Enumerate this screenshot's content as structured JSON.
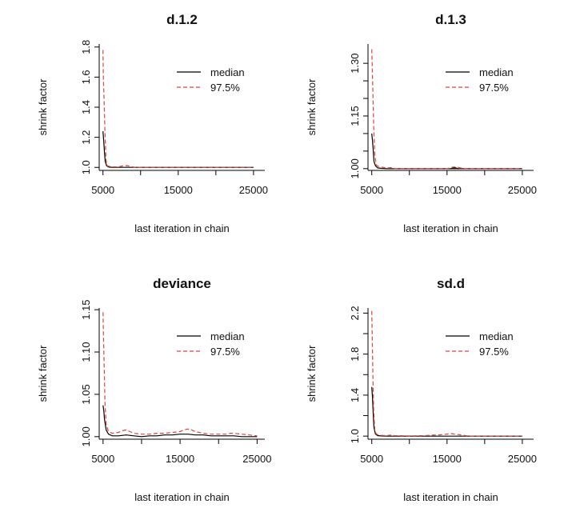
{
  "chart_data": [
    {
      "type": "line",
      "title": "d.1.2",
      "xlabel": "last iteration in chain",
      "ylabel": "shrink factor",
      "xlim": [
        4500,
        26500
      ],
      "ylim": [
        0.98,
        1.82
      ],
      "xticks": [
        5000,
        15000,
        25000
      ],
      "xtick_labels": [
        "5000",
        "15000",
        "25000"
      ],
      "extra_xticks": [
        10000,
        20000
      ],
      "yticks": [
        1.0,
        1.2,
        1.4,
        1.6,
        1.8
      ],
      "ytick_labels": [
        "1.0",
        "1.2",
        "1.4",
        "1.6",
        "1.8"
      ],
      "legend": {
        "position": "top-right",
        "entries": [
          "median",
          "97.5%"
        ]
      },
      "series": [
        {
          "name": "median",
          "color": "#000000",
          "dash": "solid",
          "x": [
            5000,
            5100,
            5200,
            5300,
            5500,
            5800,
            6200,
            7000,
            8000,
            9000,
            10000,
            15000,
            20000,
            25000
          ],
          "y": [
            1.24,
            1.18,
            1.1,
            1.04,
            1.01,
            1.002,
            1.001,
            1.0,
            1.0,
            1.0,
            1.0,
            1.0,
            1.0,
            1.0
          ]
        },
        {
          "name": "97.5%",
          "color": "#e0443a",
          "dash": "dashed",
          "x": [
            5000,
            5050,
            5150,
            5250,
            5400,
            5600,
            6000,
            7000,
            7600,
            8200,
            8800,
            9200,
            10000,
            15000,
            20000,
            25000
          ],
          "y": [
            1.78,
            1.6,
            1.45,
            1.25,
            1.05,
            1.01,
            1.005,
            1.003,
            1.01,
            1.012,
            1.005,
            1.001,
            1.0,
            1.0,
            1.0,
            1.0
          ]
        }
      ]
    },
    {
      "type": "line",
      "title": "d.1.3",
      "xlabel": "last iteration in chain",
      "ylabel": "shrink factor",
      "xlim": [
        4500,
        26500
      ],
      "ylim": [
        0.995,
        1.355
      ],
      "xticks": [
        5000,
        15000,
        25000
      ],
      "xtick_labels": [
        "5000",
        "15000",
        "25000"
      ],
      "extra_xticks": [
        10000,
        20000
      ],
      "yticks": [
        1.0,
        1.15,
        1.3
      ],
      "ytick_labels": [
        "1.00",
        "1.15",
        "1.30"
      ],
      "extra_yticks": [
        1.05,
        1.1,
        1.2,
        1.25
      ],
      "legend": {
        "position": "top-right",
        "entries": [
          "median",
          "97.5%"
        ]
      },
      "series": [
        {
          "name": "median",
          "color": "#000000",
          "dash": "solid",
          "x": [
            5000,
            5100,
            5200,
            5300,
            5500,
            5800,
            6200,
            7000,
            8000,
            10000,
            15000,
            20000,
            25000
          ],
          "y": [
            1.1,
            1.08,
            1.05,
            1.02,
            1.008,
            1.002,
            1.001,
            1.0,
            1.0,
            1.0,
            1.0,
            1.0,
            1.0
          ],
          "bumps": [
            {
              "x": [
                15500,
                16000,
                16500
              ],
              "y": [
                1.0,
                1.003,
                1.0
              ]
            }
          ]
        },
        {
          "name": "97.5%",
          "color": "#e0443a",
          "dash": "dashed",
          "x": [
            5000,
            5050,
            5150,
            5250,
            5400,
            5600,
            6000,
            7000,
            7600,
            8000,
            10000,
            15000,
            15700,
            16200,
            16800,
            17500,
            20000,
            25000
          ],
          "y": [
            1.34,
            1.3,
            1.22,
            1.12,
            1.04,
            1.01,
            1.005,
            1.002,
            1.003,
            1.0,
            1.0,
            1.0,
            1.004,
            1.005,
            1.002,
            1.0,
            1.0,
            1.0
          ]
        }
      ]
    },
    {
      "type": "line",
      "title": "deviance",
      "xlabel": "last iteration in chain",
      "ylabel": "shrink factor",
      "xlim": [
        4500,
        26000
      ],
      "ylim": [
        0.997,
        1.152
      ],
      "xticks": [
        5000,
        15000,
        25000
      ],
      "xtick_labels": [
        "5000",
        "15000",
        "25000"
      ],
      "extra_xticks": [
        10000,
        20000
      ],
      "yticks": [
        1.0,
        1.05,
        1.1,
        1.15
      ],
      "ytick_labels": [
        "1.00",
        "1.05",
        "1.10",
        "1.15"
      ],
      "legend": {
        "position": "top-right",
        "entries": [
          "median",
          "97.5%"
        ]
      },
      "series": [
        {
          "name": "median",
          "color": "#000000",
          "dash": "solid",
          "x": [
            5000,
            5100,
            5200,
            5400,
            5700,
            6200,
            7000,
            8000,
            9000,
            10000,
            11000,
            12000,
            13000,
            14000,
            15000,
            16000,
            17000,
            18000,
            19000,
            20000,
            21000,
            22000,
            23000,
            24000,
            25000
          ],
          "y": [
            1.037,
            1.03,
            1.02,
            1.008,
            1.003,
            1.001,
            1.001,
            1.002,
            1.001,
            1.0,
            1.001,
            1.001,
            1.002,
            1.002,
            1.003,
            1.003,
            1.002,
            1.002,
            1.001,
            1.001,
            1.001,
            1.001,
            1.0,
            1.0,
            1.0
          ]
        },
        {
          "name": "97.5%",
          "color": "#e0443a",
          "dash": "dashed",
          "x": [
            5000,
            5050,
            5150,
            5250,
            5400,
            5700,
            6200,
            7000,
            7500,
            8000,
            8500,
            9000,
            10000,
            11000,
            12000,
            13000,
            14000,
            15000,
            15500,
            16000,
            16500,
            17000,
            18000,
            19000,
            20000,
            21000,
            21500,
            22000,
            23000,
            24000,
            25000
          ],
          "y": [
            1.147,
            1.12,
            1.08,
            1.04,
            1.015,
            1.006,
            1.004,
            1.005,
            1.007,
            1.008,
            1.006,
            1.004,
            1.003,
            1.003,
            1.004,
            1.004,
            1.005,
            1.006,
            1.008,
            1.009,
            1.008,
            1.006,
            1.004,
            1.003,
            1.003,
            1.003,
            1.004,
            1.004,
            1.003,
            1.002,
            1.001
          ]
        }
      ]
    },
    {
      "type": "line",
      "title": "sd.d",
      "xlabel": "last iteration in chain",
      "ylabel": "shrink factor",
      "xlim": [
        4500,
        26500
      ],
      "ylim": [
        0.97,
        2.25
      ],
      "xticks": [
        5000,
        15000,
        25000
      ],
      "xtick_labels": [
        "5000",
        "15000",
        "25000"
      ],
      "extra_xticks": [
        10000,
        20000
      ],
      "yticks": [
        1.0,
        1.4,
        1.8,
        2.2
      ],
      "ytick_labels": [
        "1.0",
        "1.4",
        "1.8",
        "2.2"
      ],
      "extra_yticks": [
        1.2,
        1.6,
        2.0
      ],
      "legend": {
        "position": "top-right",
        "entries": [
          "median",
          "97.5%"
        ]
      },
      "series": [
        {
          "name": "median",
          "color": "#000000",
          "dash": "solid",
          "x": [
            5000,
            5100,
            5200,
            5300,
            5500,
            5800,
            6200,
            7000,
            8000,
            10000,
            15000,
            20000,
            25000
          ],
          "y": [
            1.48,
            1.38,
            1.2,
            1.08,
            1.02,
            1.005,
            1.002,
            1.0,
            1.0,
            1.0,
            1.0,
            1.0,
            1.0
          ]
        },
        {
          "name": "97.5%",
          "color": "#e0443a",
          "dash": "dashed",
          "x": [
            5000,
            5050,
            5150,
            5250,
            5400,
            5600,
            6000,
            7000,
            7500,
            8000,
            10000,
            12000,
            13000,
            14000,
            15000,
            15500,
            16000,
            17000,
            18000,
            20000,
            25000
          ],
          "y": [
            2.22,
            2.0,
            1.6,
            1.25,
            1.06,
            1.02,
            1.008,
            1.005,
            1.01,
            1.005,
            1.002,
            1.005,
            1.01,
            1.012,
            1.02,
            1.025,
            1.02,
            1.01,
            1.0,
            1.0,
            1.0
          ]
        }
      ]
    }
  ]
}
